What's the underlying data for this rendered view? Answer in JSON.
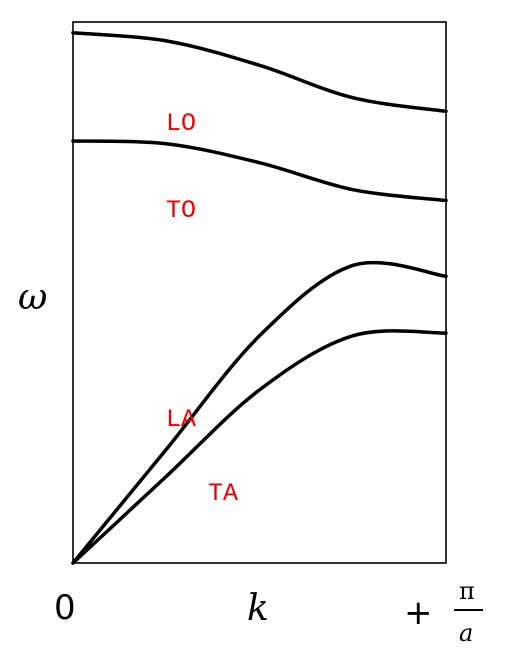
{
  "chart_data": {
    "type": "line",
    "xlabel": "k",
    "ylabel": "ω",
    "x_tick_labels": {
      "start": "0",
      "end_sign": "+",
      "end_numerator": "π",
      "end_denominator": "a"
    },
    "xlim": [
      0,
      1
    ],
    "ylim": [
      0,
      1
    ],
    "grid": false,
    "series": [
      {
        "name": "LO",
        "x": [
          0,
          0.25,
          0.5,
          0.75,
          1
        ],
        "y": [
          0.98,
          0.965,
          0.92,
          0.86,
          0.835
        ]
      },
      {
        "name": "TO",
        "x": [
          0,
          0.25,
          0.5,
          0.75,
          1
        ],
        "y": [
          0.78,
          0.775,
          0.74,
          0.69,
          0.67
        ]
      },
      {
        "name": "LA",
        "x": [
          0,
          0.25,
          0.5,
          0.75,
          1
        ],
        "y": [
          0,
          0.21,
          0.42,
          0.55,
          0.53
        ]
      },
      {
        "name": "TA",
        "x": [
          0,
          0.25,
          0.5,
          0.75,
          1
        ],
        "y": [
          0,
          0.16,
          0.32,
          0.42,
          0.425
        ]
      }
    ],
    "colors": {
      "curve": "#000000",
      "label": "#ee0000"
    }
  }
}
